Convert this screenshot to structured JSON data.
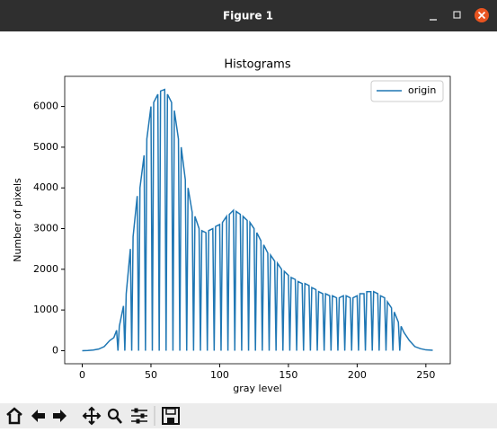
{
  "window": {
    "title": "Figure 1"
  },
  "chart_data": {
    "type": "line",
    "title": "Histograms",
    "xlabel": "gray level",
    "ylabel": "Number of pixels",
    "x": [
      0,
      4,
      8,
      12,
      16,
      20,
      23,
      25,
      26,
      27,
      30,
      31,
      32,
      35,
      36,
      37,
      40,
      41,
      42,
      45,
      46,
      47,
      50,
      51,
      52,
      55,
      56,
      57,
      60,
      61,
      62,
      65,
      66,
      67,
      70,
      71,
      72,
      75,
      76,
      77,
      80,
      81,
      82,
      85,
      86,
      87,
      90,
      91,
      92,
      95,
      96,
      97,
      100,
      101,
      102,
      105,
      106,
      107,
      110,
      111,
      112,
      115,
      116,
      117,
      120,
      121,
      122,
      125,
      126,
      127,
      130,
      131,
      132,
      135,
      136,
      137,
      140,
      141,
      142,
      145,
      146,
      147,
      150,
      151,
      152,
      155,
      156,
      157,
      160,
      161,
      162,
      165,
      166,
      167,
      170,
      171,
      172,
      175,
      176,
      177,
      180,
      181,
      182,
      185,
      186,
      187,
      190,
      191,
      192,
      195,
      196,
      197,
      200,
      201,
      202,
      205,
      206,
      207,
      210,
      211,
      212,
      215,
      216,
      217,
      220,
      221,
      222,
      225,
      226,
      227,
      230,
      231,
      232,
      234,
      238,
      242,
      246,
      250,
      255
    ],
    "series": [
      {
        "name": "origin",
        "color": "#1f77b4",
        "values": [
          0,
          5,
          15,
          40,
          100,
          250,
          320,
          500,
          0,
          600,
          1100,
          0,
          1400,
          2500,
          0,
          2800,
          3800,
          0,
          4000,
          4800,
          0,
          5200,
          6000,
          0,
          6100,
          6300,
          0,
          6380,
          6420,
          0,
          6300,
          6100,
          0,
          5900,
          5200,
          0,
          5000,
          4200,
          0,
          4000,
          3400,
          0,
          3300,
          3000,
          0,
          2950,
          2900,
          0,
          2950,
          3000,
          0,
          3050,
          3100,
          0,
          3150,
          3300,
          0,
          3350,
          3450,
          0,
          3420,
          3350,
          0,
          3300,
          3200,
          0,
          3150,
          3000,
          0,
          2900,
          2700,
          0,
          2600,
          2400,
          0,
          2350,
          2200,
          0,
          2150,
          2000,
          0,
          1950,
          1850,
          0,
          1800,
          1750,
          0,
          1700,
          1650,
          0,
          1650,
          1600,
          0,
          1550,
          1500,
          0,
          1450,
          1400,
          0,
          1400,
          1350,
          0,
          1350,
          1300,
          0,
          1300,
          1350,
          0,
          1350,
          1300,
          0,
          1300,
          1350,
          0,
          1400,
          1400,
          0,
          1450,
          1450,
          0,
          1450,
          1400,
          0,
          1350,
          1300,
          0,
          1200,
          1050,
          0,
          950,
          700,
          0,
          600,
          450,
          250,
          100,
          50,
          20,
          10
        ]
      }
    ],
    "xlim": [
      -12.75,
      267.75
    ],
    "xticks": [
      0,
      50,
      100,
      150,
      200,
      250
    ],
    "ylim": [
      -321,
      6741
    ],
    "yticks": [
      0,
      1000,
      2000,
      3000,
      4000,
      5000,
      6000
    ],
    "legend": "upper right"
  }
}
